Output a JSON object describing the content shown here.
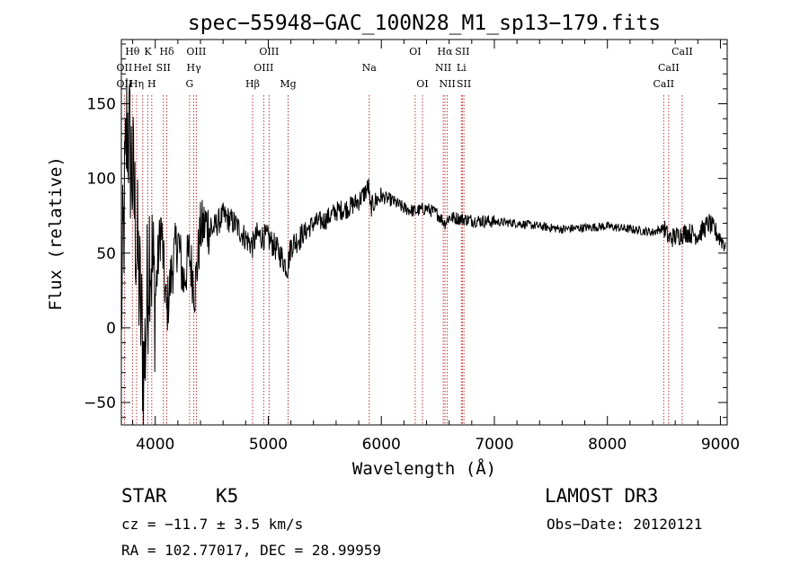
{
  "chart_data": {
    "type": "line",
    "title": "spec−55948−GAC_100N28_M1_sp13−179.fits",
    "xlabel": "Wavelength (Å)",
    "ylabel": "Flux (relative)",
    "xlim": [
      3700,
      9060
    ],
    "ylim": [
      -65,
      193
    ],
    "xticks": [
      4000,
      5000,
      6000,
      7000,
      8000,
      9000
    ],
    "xtick_labels": [
      "4000",
      "5000",
      "6000",
      "7000",
      "8000",
      "9000"
    ],
    "yticks": [
      -50,
      0,
      50,
      100,
      150
    ],
    "ytick_labels": [
      "−50",
      "0",
      "50",
      "100",
      "150"
    ],
    "line_color": "#000000",
    "marker_color": "#b22222",
    "spectrum": {
      "name": "flux",
      "x": [
        3700,
        3750,
        3800,
        3850,
        3900,
        3950,
        4000,
        4050,
        4100,
        4150,
        4200,
        4250,
        4300,
        4350,
        4400,
        4450,
        4500,
        4600,
        4700,
        4800,
        4860,
        4900,
        5000,
        5100,
        5170,
        5200,
        5300,
        5400,
        5500,
        5600,
        5700,
        5800,
        5850,
        5890,
        5900,
        5950,
        6000,
        6100,
        6200,
        6300,
        6400,
        6500,
        6563,
        6600,
        6700,
        6800,
        7000,
        7200,
        7400,
        7600,
        7800,
        8000,
        8200,
        8400,
        8500,
        8542,
        8600,
        8700,
        8800,
        8900,
        8950,
        9000,
        9050
      ],
      "y": [
        10,
        140,
        100,
        40,
        -30,
        60,
        20,
        70,
        10,
        40,
        60,
        30,
        50,
        25,
        65,
        70,
        65,
        75,
        70,
        60,
        55,
        62,
        60,
        50,
        40,
        55,
        62,
        70,
        72,
        78,
        80,
        85,
        90,
        95,
        80,
        85,
        88,
        85,
        80,
        78,
        80,
        76,
        70,
        74,
        73,
        72,
        71,
        70,
        68,
        66,
        67,
        68,
        66,
        64,
        67,
        60,
        61,
        64,
        62,
        70,
        65,
        60,
        55
      ]
    },
    "lines": [
      {
        "label": "Hθ",
        "wave": 3798,
        "row": 0
      },
      {
        "label": "OII",
        "wave": 3727,
        "row": 1
      },
      {
        "label": "OII",
        "wave": 3727,
        "row": 2
      },
      {
        "label": "Hη",
        "wave": 3835,
        "row": 2
      },
      {
        "label": "HeI",
        "wave": 3889,
        "row": 1
      },
      {
        "label": "K",
        "wave": 3934,
        "row": 0
      },
      {
        "label": "H",
        "wave": 3969,
        "row": 2
      },
      {
        "label": "SII",
        "wave": 4072,
        "row": 1
      },
      {
        "label": "Hδ",
        "wave": 4102,
        "row": 0
      },
      {
        "label": "OIII",
        "wave": 4363,
        "row": 0
      },
      {
        "label": "Hγ",
        "wave": 4341,
        "row": 1
      },
      {
        "label": "G",
        "wave": 4304,
        "row": 2
      },
      {
        "label": "Hβ",
        "wave": 4861,
        "row": 2
      },
      {
        "label": "OIII",
        "wave": 5007,
        "row": 0
      },
      {
        "label": "OIII",
        "wave": 4959,
        "row": 1
      },
      {
        "label": "Mg",
        "wave": 5175,
        "row": 2
      },
      {
        "label": "Na",
        "wave": 5893,
        "row": 1
      },
      {
        "label": "OI",
        "wave": 6300,
        "row": 0
      },
      {
        "label": "OI",
        "wave": 6364,
        "row": 2
      },
      {
        "label": "Hα",
        "wave": 6563,
        "row": 0
      },
      {
        "label": "NII",
        "wave": 6548,
        "row": 1
      },
      {
        "label": "NII",
        "wave": 6584,
        "row": 2
      },
      {
        "label": "SII",
        "wave": 6717,
        "row": 0
      },
      {
        "label": "Li",
        "wave": 6708,
        "row": 1
      },
      {
        "label": "SII",
        "wave": 6731,
        "row": 2
      },
      {
        "label": "CaII",
        "wave": 8662,
        "row": 0
      },
      {
        "label": "CaII",
        "wave": 8542,
        "row": 1
      },
      {
        "label": "CaII",
        "wave": 8498,
        "row": 2
      }
    ]
  },
  "info": {
    "object_class": "STAR",
    "subclass": "K5",
    "survey": "LAMOST DR3",
    "cz": "cz = −11.7 ± 3.5 km/s",
    "obs_date": "Obs−Date: 20120121",
    "coords": "RA = 102.77017, DEC =  28.99959"
  }
}
